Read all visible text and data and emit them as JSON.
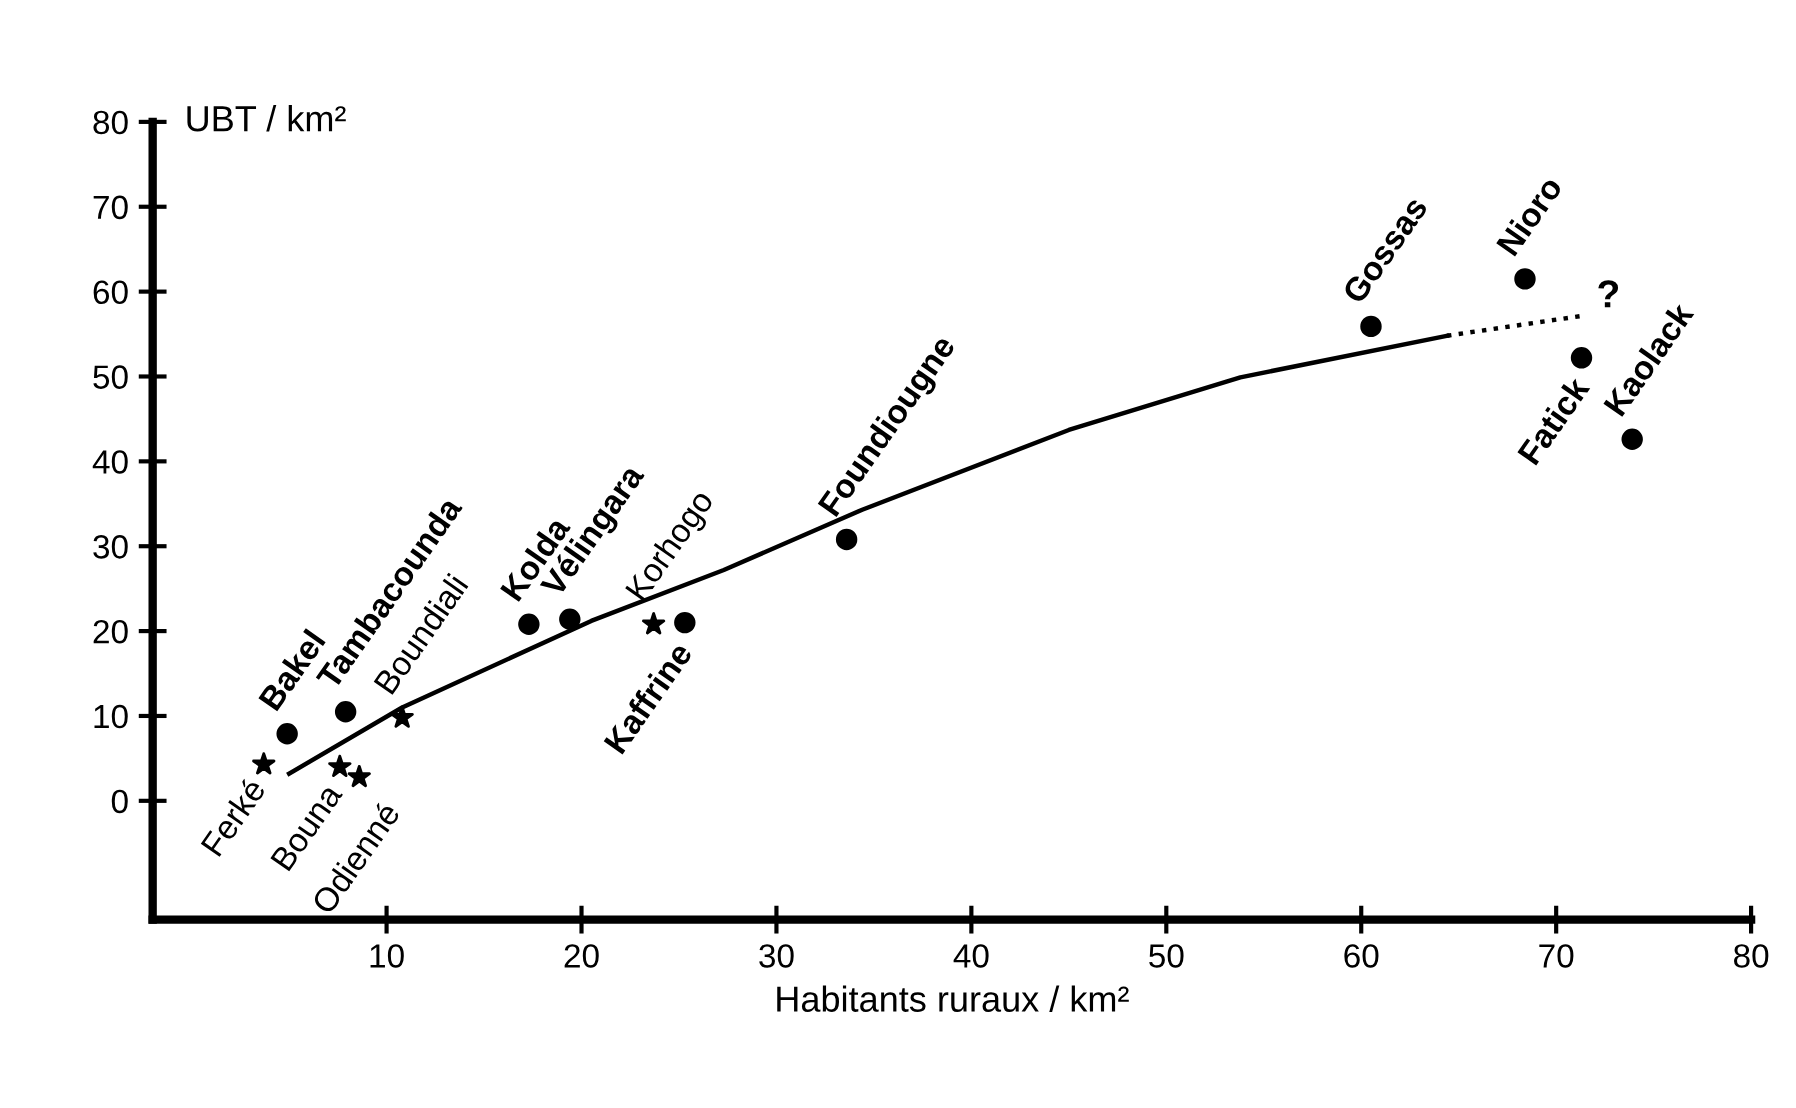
{
  "chart_data": {
    "type": "scatter",
    "xlabel": "Habitants ruraux / km²",
    "ylabel": "UBT / km²",
    "xlim": [
      -2,
      80
    ],
    "ylim": [
      -14,
      80
    ],
    "xticks": [
      10,
      20,
      30,
      40,
      50,
      60,
      70,
      80
    ],
    "yticks": [
      0,
      10,
      20,
      30,
      40,
      50,
      60,
      70,
      80
    ],
    "grid": false,
    "legend": false,
    "series": [
      {
        "marker": "circle",
        "color": "#000000",
        "x": [
          4.9,
          7.9,
          17.3,
          19.4,
          25.3,
          33.6,
          60.5,
          68.4,
          71.3,
          73.9
        ],
        "values": [
          7.9,
          10.5,
          20.8,
          21.4,
          21,
          30.8,
          55.9,
          61.5,
          52.2,
          42.6
        ],
        "value_labels": [
          "Bakel",
          "Tambacounda",
          "Kolda",
          "Vélingara",
          "Kaffrine",
          "Foundiougne",
          "Gossas",
          "Nioro",
          "Fatick",
          "Kaolack"
        ]
      },
      {
        "marker": "star",
        "color": "#000000",
        "x": [
          3.7,
          7.6,
          8.6,
          10.8,
          23.7
        ],
        "values": [
          4.3,
          4,
          2.8,
          9.8,
          20.8
        ],
        "value_labels": [
          "Ferké",
          "Bouna",
          "Odienné",
          "Boundiali",
          "Korhogo"
        ]
      },
      {
        "type": "line",
        "line_style": "solid",
        "color": "#000000",
        "x": [
          5,
          10.8,
          20.5,
          27.3,
          34.4,
          45,
          53.8,
          64.4
        ],
        "values": [
          3.2,
          11,
          21.2,
          27.2,
          34.3,
          43.7,
          49.9,
          54.8
        ]
      },
      {
        "type": "line",
        "line_style": "dotted",
        "color": "#000000",
        "x": [
          64.4,
          71.5
        ],
        "values": [
          54.8,
          57.2
        ]
      }
    ],
    "annotations": [
      "?"
    ]
  }
}
